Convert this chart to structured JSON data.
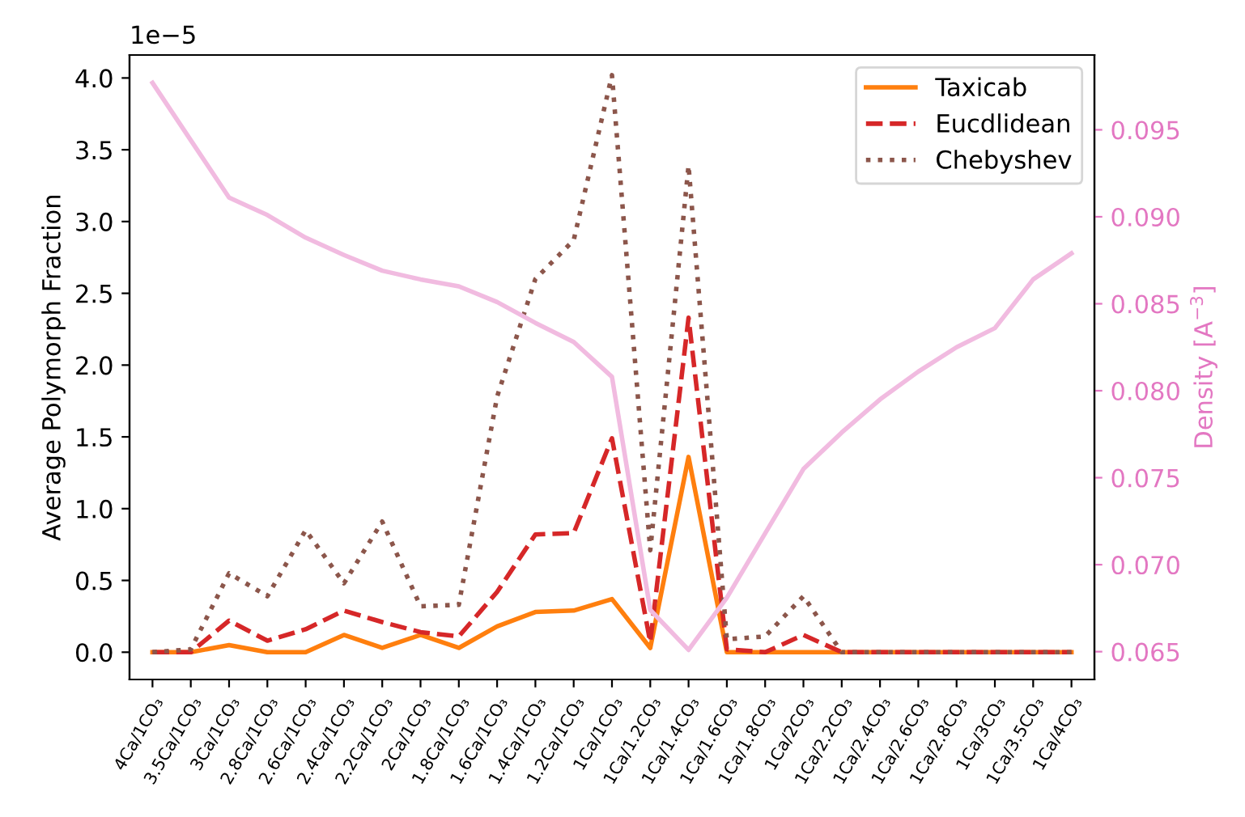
{
  "chart_data": {
    "type": "line",
    "ylabel": "Average Polymorph Fraction",
    "y2label": "Density [A$^{−3}$]",
    "annotations": [
      "1e−5"
    ],
    "categories": [
      "4Ca/1CO₃",
      "3.5Ca/1CO₃",
      "3Ca/1CO₃",
      "2.8Ca/1CO₃",
      "2.6Ca/1CO₃",
      "2.4Ca/1CO₃",
      "2.2Ca/1CO₃",
      "2Ca/1CO₃",
      "1.8Ca/1CO₃",
      "1.6Ca/1CO₃",
      "1.4Ca/1CO₃",
      "1.2Ca/1CO₃",
      "1Ca/1CO₃",
      "1Ca/1.2CO₃",
      "1Ca/1.4CO₃",
      "1Ca/1.6CO₃",
      "1Ca/1.8CO₃",
      "1Ca/2CO₃",
      "1Ca/2.2CO₃",
      "1Ca/2.4CO₃",
      "1Ca/2.6CO₃",
      "1Ca/2.8CO₃",
      "1Ca/3CO₃",
      "1Ca/3.5CO₃",
      "1Ca/4CO₃"
    ],
    "series": [
      {
        "name": "Taxicab",
        "color": "#ff7f0e",
        "line_style": "solid",
        "values": [
          0,
          0,
          0.05,
          0,
          0,
          0.12,
          0.03,
          0.12,
          0.03,
          0.18,
          0.28,
          0.29,
          0.37,
          0.03,
          1.36,
          0,
          0,
          0,
          0,
          0,
          0,
          0,
          0,
          0,
          0
        ]
      },
      {
        "name": "Eucdlidean",
        "color": "#d62728",
        "line_style": "dashed",
        "values": [
          0,
          0,
          0.22,
          0.08,
          0.16,
          0.29,
          0.21,
          0.14,
          0.11,
          0.42,
          0.82,
          0.83,
          1.49,
          0.07,
          2.33,
          0.02,
          0,
          0.12,
          0,
          0,
          0,
          0,
          0,
          0,
          0
        ]
      },
      {
        "name": "Chebyshev",
        "color": "#8c564b",
        "line_style": "dotted",
        "values": [
          0,
          0.02,
          0.55,
          0.39,
          0.85,
          0.48,
          0.91,
          0.32,
          0.33,
          1.78,
          2.6,
          2.87,
          4.02,
          0.71,
          3.39,
          0.09,
          0.11,
          0.39,
          0,
          0,
          0,
          0,
          0,
          0,
          0
        ]
      },
      {
        "color": "#f1bbe0",
        "line_style": "solid",
        "axis": "y2",
        "values": [
          0.0977,
          0.0944,
          0.0911,
          0.0901,
          0.0888,
          0.0878,
          0.0869,
          0.0864,
          0.086,
          0.0851,
          0.0839,
          0.0828,
          0.0808,
          0.0674,
          0.0651,
          0.0681,
          0.0718,
          0.0755,
          0.0776,
          0.0795,
          0.0811,
          0.0825,
          0.0836,
          0.0864,
          0.0879
        ]
      }
    ],
    "ylim": [
      -0.19,
      4.16
    ],
    "yticks": [
      {
        "value": 0,
        "label": "0.0"
      },
      0.5,
      {
        "value": 1,
        "label": "1.0"
      },
      1.5,
      {
        "value": 2,
        "label": "2.0"
      },
      2.5,
      {
        "value": 3,
        "label": "3.0"
      },
      3.5,
      {
        "value": 4,
        "label": "4.0"
      }
    ],
    "y2lim": [
      0.0634,
      0.0993
    ],
    "y2ticks": [
      0.065,
      {
        "value": 0.07,
        "label": "0.070"
      },
      0.075,
      {
        "value": 0.08,
        "label": "0.080"
      },
      0.085,
      {
        "value": 0.09,
        "label": "0.090"
      },
      0.095
    ],
    "legend": "top right",
    "grid": false
  }
}
